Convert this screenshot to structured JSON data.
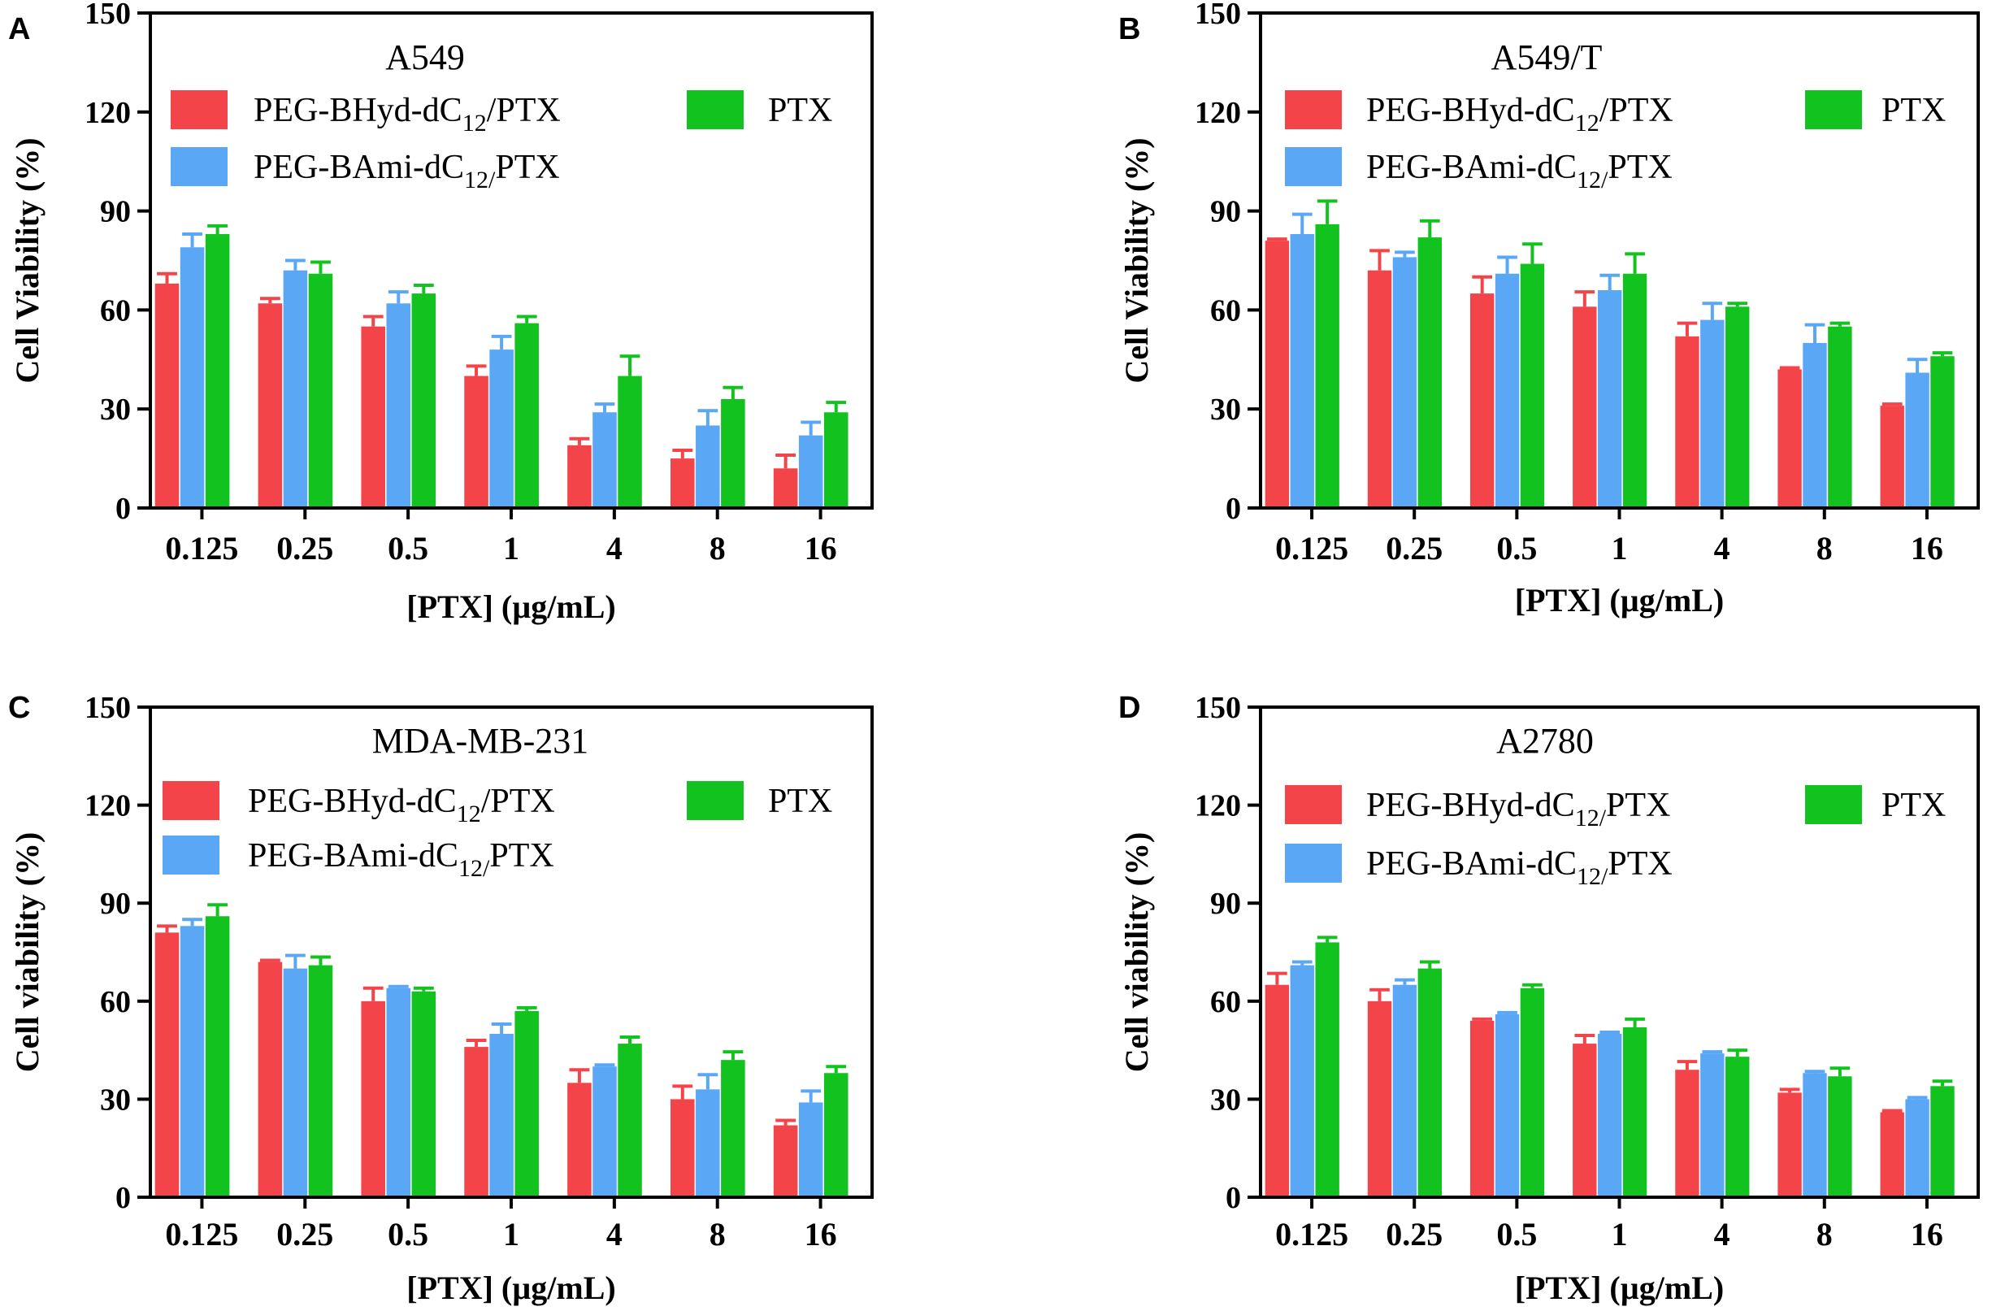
{
  "colors": {
    "series1": "#f24449",
    "series2": "#5aa7f5",
    "series3": "#12c21f",
    "axis": "#000000"
  },
  "chart_data": [
    {
      "panel": "A",
      "type": "bar",
      "title": "A549",
      "xlabel": "[PTX] (µg/mL)",
      "ylabel": "Cell Viability (%)",
      "ylim": [
        0,
        150
      ],
      "yticks": [
        "0",
        "30",
        "60",
        "90",
        "120",
        "150"
      ],
      "categories": [
        "0.125",
        "0.25",
        "0.5",
        "1",
        "4",
        "8",
        "16"
      ],
      "series": [
        {
          "name": "PEG-BHyd-dC12/PTX",
          "label_main": "PEG-BHyd-dC",
          "label_sub": "12",
          "label_tail": "/PTX",
          "values": [
            68,
            62,
            55,
            40,
            19,
            15,
            12
          ],
          "errors": [
            3,
            1.5,
            3,
            3,
            2,
            2.5,
            4
          ]
        },
        {
          "name": "PEG-BAmi-dC12/PTX",
          "label_main": "PEG-BAmi-dC",
          "label_sub": "12/",
          "label_tail": "PTX",
          "values": [
            79,
            72,
            62,
            48,
            29,
            25,
            22
          ],
          "errors": [
            4,
            3,
            3.5,
            4,
            2.5,
            4.5,
            4
          ]
        },
        {
          "name": "PTX",
          "label_main": "PTX",
          "label_sub": "",
          "label_tail": "",
          "values": [
            83,
            71,
            65,
            56,
            40,
            33,
            29
          ],
          "errors": [
            2.5,
            3.5,
            2.5,
            2,
            6,
            3.5,
            3
          ]
        }
      ]
    },
    {
      "panel": "B",
      "type": "bar",
      "title": "A549/T",
      "xlabel": "[PTX] (µg/mL)",
      "ylabel": "Cell Viability (%)",
      "ylim": [
        0,
        150
      ],
      "yticks": [
        "0",
        "30",
        "60",
        "90",
        "120",
        "150"
      ],
      "categories": [
        "0.125",
        "0.25",
        "0.5",
        "1",
        "4",
        "8",
        "16"
      ],
      "series": [
        {
          "name": "PEG-BHyd-dC12/PTX",
          "label_main": "PEG-BHyd-dC",
          "label_sub": "12",
          "label_tail": "/PTX",
          "values": [
            81,
            72,
            65,
            61,
            52,
            42,
            31
          ],
          "errors": [
            0.5,
            6,
            5,
            4.5,
            4,
            0.5,
            0.5
          ]
        },
        {
          "name": "PEG-BAmi-dC12/PTX",
          "label_main": "PEG-BAmi-dC",
          "label_sub": "12/",
          "label_tail": "PTX",
          "values": [
            83,
            76,
            71,
            66,
            57,
            50,
            41
          ],
          "errors": [
            6,
            1.5,
            5,
            4.5,
            5,
            5.5,
            4
          ]
        },
        {
          "name": "PTX",
          "label_main": "PTX",
          "label_sub": "",
          "label_tail": "",
          "values": [
            86,
            82,
            74,
            71,
            61,
            55,
            46
          ],
          "errors": [
            7,
            5,
            6,
            6,
            1,
            1,
            1
          ]
        }
      ]
    },
    {
      "panel": "C",
      "type": "bar",
      "title": "MDA-MB-231",
      "xlabel": "[PTX] (µg/mL)",
      "ylabel": "Cell viability (%)",
      "ylim": [
        0,
        150
      ],
      "yticks": [
        "0",
        "30",
        "60",
        "90",
        "120",
        "150"
      ],
      "categories": [
        "0.125",
        "0.25",
        "0.5",
        "1",
        "4",
        "8",
        "16"
      ],
      "series": [
        {
          "name": "PEG-BHyd-dC12/PTX",
          "label_main": "PEG-BHyd-dC",
          "label_sub": "12",
          "label_tail": "/PTX",
          "values": [
            81,
            72,
            60,
            46,
            35,
            30,
            22
          ],
          "errors": [
            2,
            0.5,
            4,
            2,
            4,
            4,
            1.5
          ]
        },
        {
          "name": "PEG-BAmi-dC12/PTX",
          "label_main": "PEG-BAmi-dC",
          "label_sub": "12/",
          "label_tail": "PTX",
          "values": [
            83,
            70,
            64,
            50,
            40,
            33,
            29
          ],
          "errors": [
            2,
            4,
            0.5,
            3,
            0.5,
            4.5,
            3.5
          ]
        },
        {
          "name": "PTX",
          "label_main": "PTX",
          "label_sub": "",
          "label_tail": "",
          "values": [
            86,
            71,
            63,
            57,
            47,
            42,
            38
          ],
          "errors": [
            3.5,
            2.5,
            1,
            1,
            2,
            2.5,
            2
          ]
        }
      ]
    },
    {
      "panel": "D",
      "type": "bar",
      "title": "A2780",
      "xlabel": "[PTX] (µg/mL)",
      "ylabel": "Cell viability (%)",
      "ylim": [
        0,
        150
      ],
      "yticks": [
        "0",
        "30",
        "60",
        "90",
        "120",
        "150"
      ],
      "categories": [
        "0.125",
        "0.25",
        "0.5",
        "1",
        "4",
        "8",
        "16"
      ],
      "series": [
        {
          "name": "PEG-BHyd-dC12/PTX",
          "label_main": "PEG-BHyd-dC",
          "label_sub": "12/",
          "label_tail": "PTX",
          "values": [
            65,
            60,
            54,
            47,
            39,
            32,
            26
          ],
          "errors": [
            3.5,
            3.5,
            0.5,
            2.5,
            2.5,
            1,
            0.5
          ]
        },
        {
          "name": "PEG-BAmi-dC12/PTX",
          "label_main": "PEG-BAmi-dC",
          "label_sub": "12/",
          "label_tail": "PTX",
          "values": [
            71,
            65,
            56,
            50,
            44,
            38,
            30
          ],
          "errors": [
            1,
            1.5,
            0.5,
            0.5,
            0.5,
            0.5,
            0.5
          ]
        },
        {
          "name": "PTX",
          "label_main": "PTX",
          "label_sub": "",
          "label_tail": "",
          "values": [
            78,
            70,
            64,
            52,
            43,
            37,
            34
          ],
          "errors": [
            1.5,
            2,
            1,
            2.5,
            2,
            2.5,
            1.5
          ]
        }
      ]
    }
  ]
}
